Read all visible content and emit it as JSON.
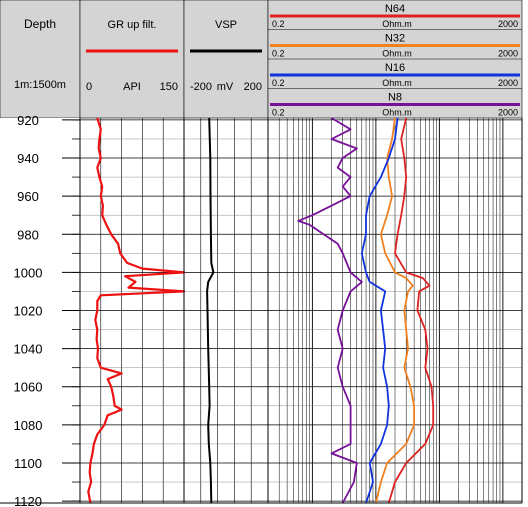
{
  "chart_data": {
    "type": "line",
    "depth_track": {
      "title": "Depth",
      "scale": "1m:1500m",
      "ticks": [
        920,
        940,
        960,
        980,
        1000,
        1020,
        1040,
        1060,
        1080,
        1100,
        1120
      ],
      "range": [
        919,
        1121
      ]
    },
    "tracks": [
      {
        "id": "gr",
        "title": "GR up filt.",
        "unit": "API",
        "min_label": "0",
        "max_label": "150",
        "range": [
          0,
          150
        ],
        "scale": "linear",
        "color": "#ee1111",
        "series": [
          {
            "name": "",
            "depth": [
              919,
              925,
              930,
              935,
              940,
              945,
              950,
              955,
              960,
              965,
              970,
              975,
              980,
              985,
              990,
              995,
              998,
              1000,
              1002,
              1005,
              1008,
              1010,
              1012,
              1015,
              1020,
              1025,
              1030,
              1035,
              1040,
              1045,
              1050,
              1053,
              1056,
              1060,
              1065,
              1070,
              1072,
              1075,
              1080,
              1085,
              1090,
              1095,
              1100,
              1105,
              1110,
              1115,
              1121
            ],
            "values": [
              25,
              30,
              28,
              27,
              30,
              25,
              28,
              32,
              30,
              33,
              32,
              38,
              45,
              55,
              58,
              68,
              90,
              150,
              65,
              80,
              70,
              150,
              30,
              25,
              25,
              22,
              25,
              24,
              26,
              25,
              30,
              60,
              40,
              45,
              48,
              50,
              60,
              40,
              35,
              25,
              20,
              18,
              15,
              14,
              16,
              12,
              15
            ]
          }
        ]
      },
      {
        "id": "vsp",
        "title": "VSP",
        "unit": "mV",
        "min_label": "-200",
        "max_label": "200",
        "range": [
          -200,
          200
        ],
        "scale": "linear",
        "color": "#000000",
        "series": [
          {
            "name": "",
            "depth": [
              919,
              940,
              960,
              980,
              995,
              1000,
              1003,
              1005,
              1010,
              1020,
              1040,
              1060,
              1070,
              1080,
              1090,
              1100,
              1110,
              1121
            ],
            "values": [
              -80,
              -75,
              -74,
              -72,
              -70,
              -60,
              -75,
              -85,
              -90,
              -88,
              -85,
              -80,
              -78,
              -85,
              -82,
              -75,
              -72,
              -70
            ]
          }
        ]
      },
      {
        "id": "resistivity",
        "scale": "log",
        "range": [
          0.2,
          2000
        ],
        "curves": [
          {
            "name": "N64",
            "unit": "Ohm.m",
            "min_label": "0.2",
            "max_label": "2000",
            "color": "#dd2222",
            "depth": [
              919,
              930,
              940,
              950,
              960,
              970,
              980,
              990,
              1000,
              1003,
              1007,
              1010,
              1020,
              1030,
              1040,
              1050,
              1060,
              1070,
              1080,
              1090,
              1100,
              1110,
              1121
            ],
            "values": [
              30,
              25,
              28,
              30,
              28,
              25,
              22,
              20,
              30,
              55,
              70,
              48,
              45,
              60,
              65,
              60,
              75,
              80,
              80,
              60,
              30,
              20,
              16
            ]
          },
          {
            "name": "N32",
            "unit": "Ohm.m",
            "min_label": "0.2",
            "max_label": "2000",
            "color": "#f08020",
            "depth": [
              919,
              930,
              940,
              950,
              960,
              970,
              980,
              990,
              1000,
              1003,
              1007,
              1010,
              1020,
              1030,
              1040,
              1050,
              1060,
              1070,
              1080,
              1090,
              1100,
              1110,
              1121
            ],
            "values": [
              20,
              18,
              15,
              16,
              18,
              15,
              12,
              14,
              20,
              30,
              38,
              32,
              28,
              30,
              32,
              28,
              35,
              40,
              40,
              30,
              15,
              12,
              10
            ]
          },
          {
            "name": "N16",
            "unit": "Ohm.m",
            "min_label": "0.2",
            "max_label": "2000",
            "color": "#1133dd",
            "depth": [
              919,
              930,
              940,
              950,
              960,
              970,
              980,
              990,
              1000,
              1005,
              1010,
              1020,
              1030,
              1040,
              1050,
              1060,
              1070,
              1080,
              1090,
              1100,
              1110,
              1121
            ],
            "values": [
              22,
              20,
              16,
              12,
              8,
              7,
              7,
              6,
              7,
              8,
              14,
              12,
              13,
              14,
              13,
              15,
              16,
              15,
              12,
              8,
              9,
              7
            ]
          },
          {
            "name": "N8",
            "unit": "Ohm.m",
            "min_label": "0.2",
            "max_label": "2000",
            "color": "#771199",
            "depth": [
              919,
              925,
              930,
              935,
              940,
              945,
              950,
              955,
              960,
              965,
              970,
              973,
              975,
              980,
              985,
              990,
              1000,
              1005,
              1010,
              1020,
              1030,
              1040,
              1050,
              1060,
              1070,
              1080,
              1090,
              1095,
              1100,
              1110,
              1121
            ],
            "values": [
              2,
              4,
              2,
              5,
              3,
              2.5,
              4,
              3,
              4,
              2,
              1,
              0.6,
              0.9,
              1.5,
              2.5,
              3,
              4,
              6,
              4,
              3,
              2.5,
              3,
              2.5,
              3,
              4,
              4,
              4,
              2,
              5,
              4.5,
              3
            ]
          }
        ]
      }
    ]
  }
}
